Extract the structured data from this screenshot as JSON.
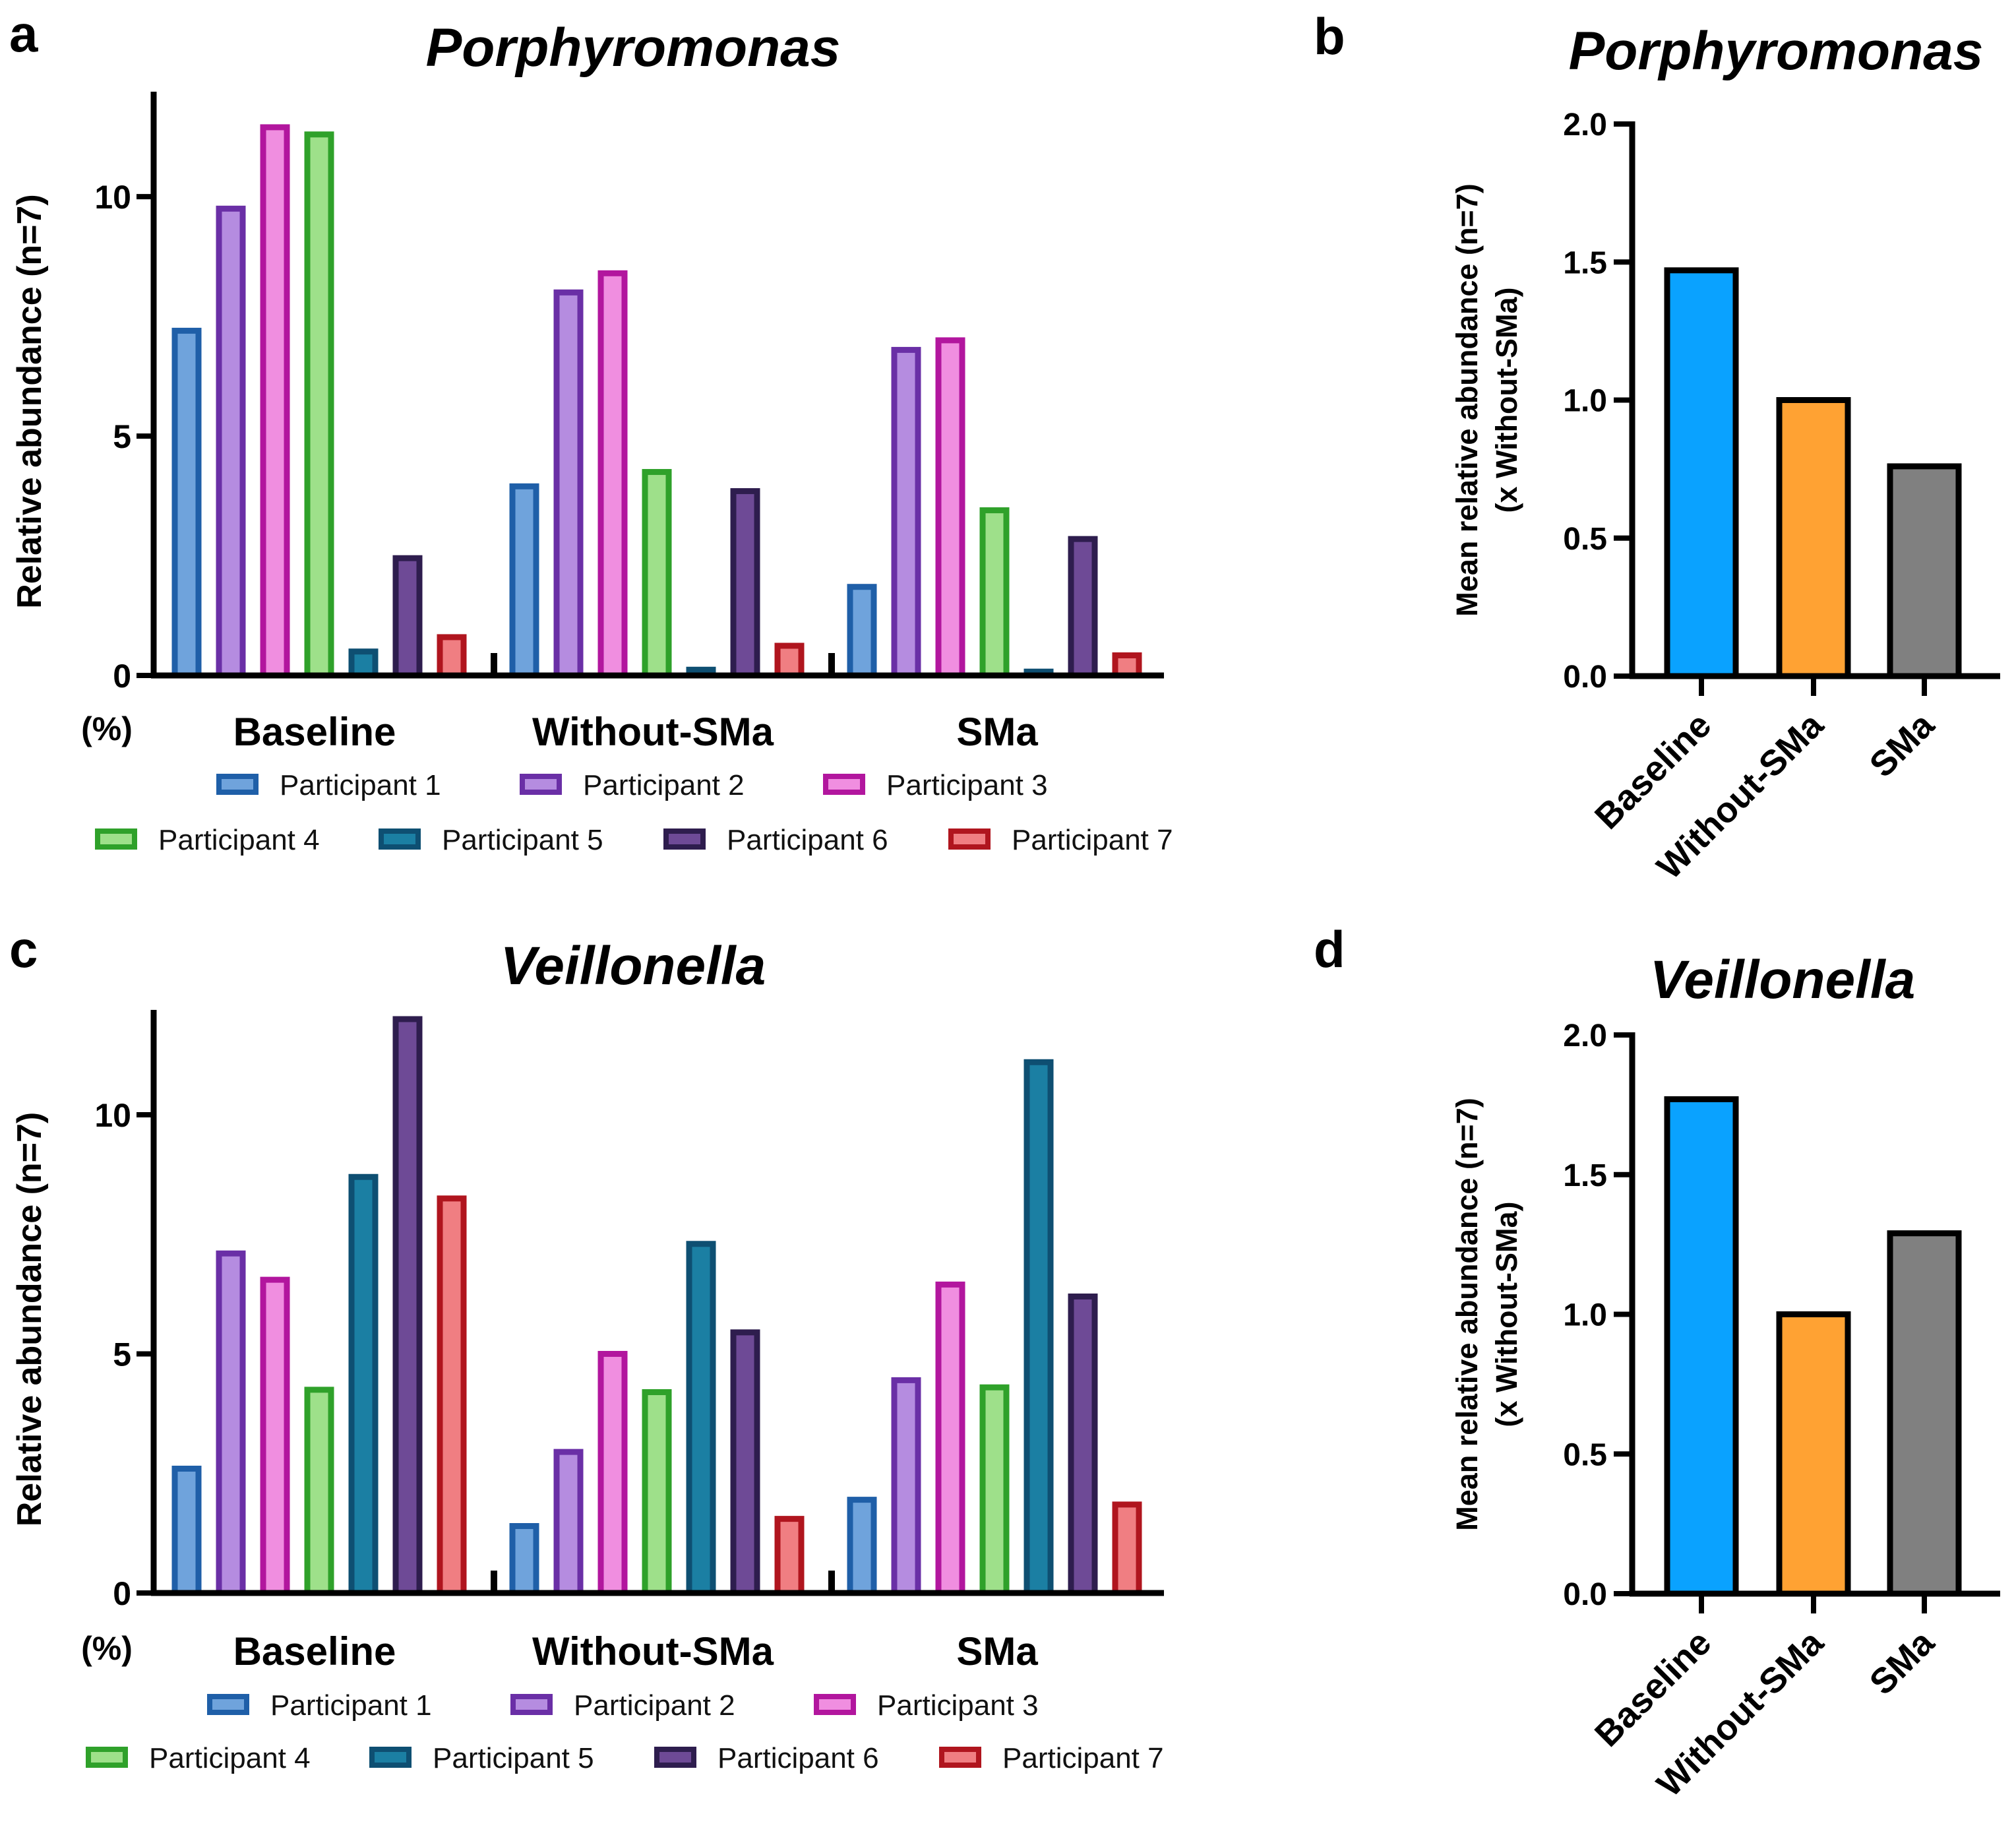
{
  "colors": {
    "p1_stroke": "#1F5FA8",
    "p1_fill": "#6FA3DC",
    "p2_stroke": "#6A2FA6",
    "p2_fill": "#B58CE0",
    "p3_stroke": "#B2169E",
    "p3_fill": "#F08EE0",
    "p4_stroke": "#2FA12A",
    "p4_fill": "#9EE08A",
    "p5_stroke": "#0E4F72",
    "p5_fill": "#1B7FA3",
    "p6_stroke": "#2E1D4E",
    "p6_fill": "#6E4A96",
    "p7_stroke": "#B0151E",
    "p7_fill": "#F07E82",
    "baseline": "#0AA2FF",
    "without_sma": "#FFA233",
    "sma": "#808080"
  },
  "chart_data": [
    {
      "id": "a",
      "panel_letter": "a",
      "type": "bar",
      "title": "Porphyromonas",
      "ylabel": "Relative abundance (n=7)",
      "yunit_label": "(%)",
      "ylim": [
        0,
        12
      ],
      "yticks": [
        0,
        5,
        10
      ],
      "ytick_labels": [
        "0",
        "5",
        "10"
      ],
      "categories": [
        "Baseline",
        "Without-SMa",
        "SMa"
      ],
      "series": [
        {
          "name": "Participant 1",
          "values": [
            7.2,
            3.95,
            1.85
          ]
        },
        {
          "name": "Participant 2",
          "values": [
            9.75,
            8.0,
            6.8
          ]
        },
        {
          "name": "Participant 3",
          "values": [
            11.45,
            8.4,
            7.0
          ]
        },
        {
          "name": "Participant 4",
          "values": [
            11.3,
            4.25,
            3.45
          ]
        },
        {
          "name": "Participant 5",
          "values": [
            0.5,
            0.12,
            0.08
          ]
        },
        {
          "name": "Participant 6",
          "values": [
            2.45,
            3.85,
            2.85
          ]
        },
        {
          "name": "Participant 7",
          "values": [
            0.8,
            0.62,
            0.42
          ]
        }
      ]
    },
    {
      "id": "b",
      "panel_letter": "b",
      "type": "bar",
      "title": "Porphyromonas",
      "ylabel": "Mean relative abundance (n=7)",
      "ylabel2": "(x Without-SMa)",
      "ylim": [
        0,
        2
      ],
      "yticks": [
        0,
        0.5,
        1,
        1.5,
        2
      ],
      "ytick_labels": [
        "0.0",
        "0.5",
        "1.0",
        "1.5",
        "2.0"
      ],
      "categories": [
        "Baseline",
        "Without-SMa",
        "SMa"
      ],
      "values": [
        1.47,
        1.0,
        0.76
      ]
    },
    {
      "id": "c",
      "panel_letter": "c",
      "type": "bar",
      "title": "Veillonella",
      "ylabel": "Relative abundance (n=7)",
      "yunit_label": "(%)",
      "ylim": [
        0,
        12
      ],
      "yticks": [
        0,
        5,
        10
      ],
      "ytick_labels": [
        "0",
        "5",
        "10"
      ],
      "categories": [
        "Baseline",
        "Without-SMa",
        "SMa"
      ],
      "series": [
        {
          "name": "Participant 1",
          "values": [
            2.6,
            1.4,
            1.95
          ]
        },
        {
          "name": "Participant 2",
          "values": [
            7.1,
            2.95,
            4.45
          ]
        },
        {
          "name": "Participant 3",
          "values": [
            6.55,
            5.0,
            6.45
          ]
        },
        {
          "name": "Participant 4",
          "values": [
            4.25,
            4.2,
            4.3
          ]
        },
        {
          "name": "Participant 5",
          "values": [
            8.7,
            7.3,
            11.1
          ]
        },
        {
          "name": "Participant 6",
          "values": [
            12.0,
            5.45,
            6.2
          ]
        },
        {
          "name": "Participant 7",
          "values": [
            8.25,
            1.55,
            1.85
          ]
        }
      ]
    },
    {
      "id": "d",
      "panel_letter": "d",
      "type": "bar",
      "title": "Veillonella",
      "ylabel": "Mean relative abundance (n=7)",
      "ylabel2": "(x Without-SMa)",
      "ylim": [
        0,
        2
      ],
      "yticks": [
        0,
        0.5,
        1,
        1.5,
        2
      ],
      "ytick_labels": [
        "0.0",
        "0.5",
        "1.0",
        "1.5",
        "2.0"
      ],
      "categories": [
        "Baseline",
        "Without-SMa",
        "SMa"
      ],
      "values": [
        1.77,
        1.0,
        1.29
      ]
    }
  ]
}
